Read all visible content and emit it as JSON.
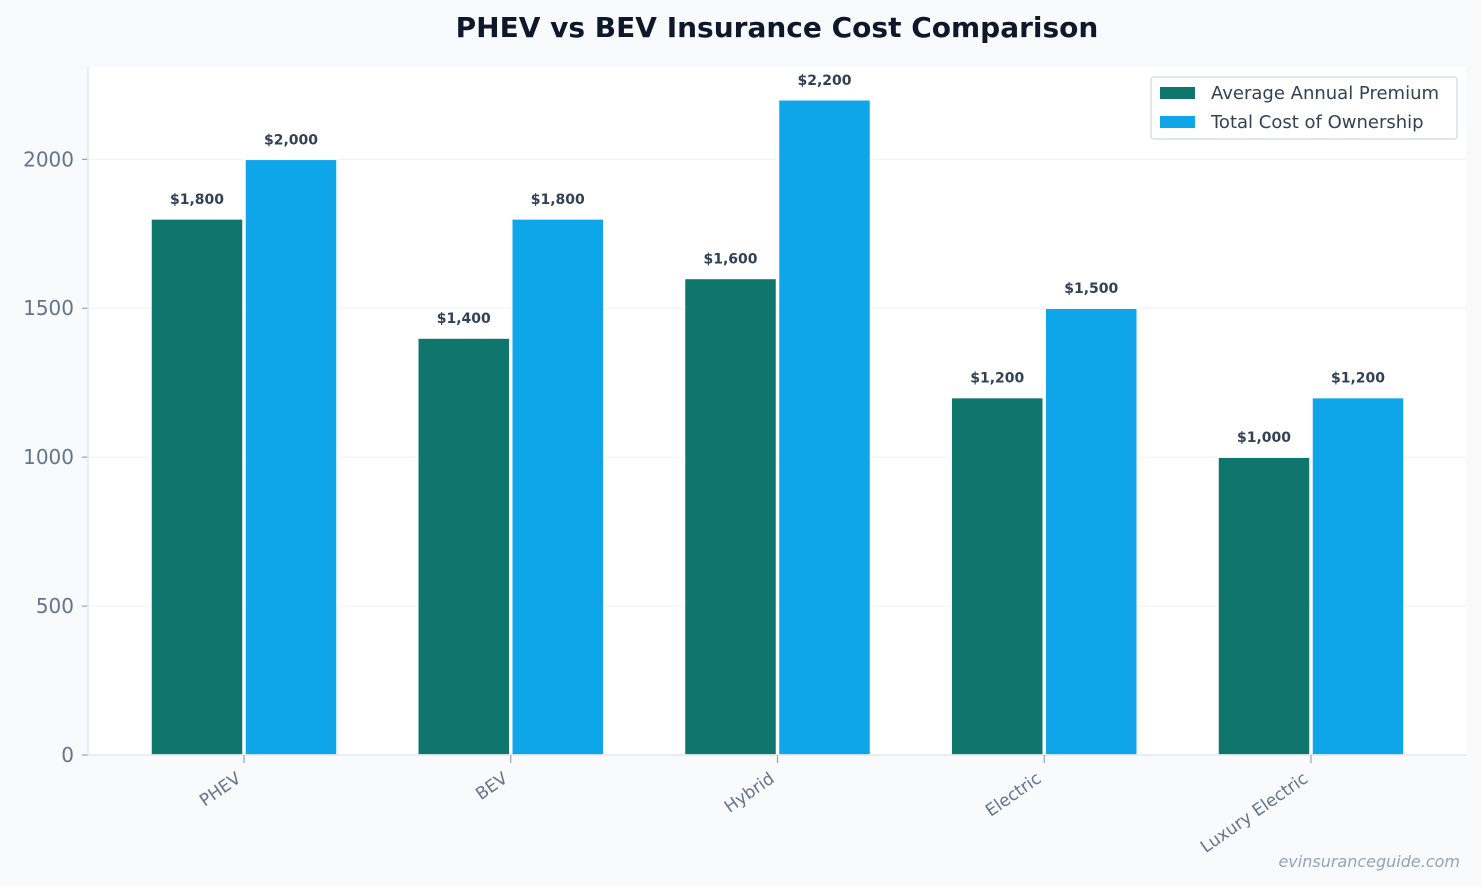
{
  "chart_data": {
    "type": "bar",
    "title": "PHEV vs BEV Insurance Cost Comparison",
    "xlabel": "",
    "ylabel": "",
    "categories": [
      "PHEV",
      "BEV",
      "Hybrid",
      "Electric",
      "Luxury Electric"
    ],
    "series": [
      {
        "name": "Average Annual Premium",
        "color": "#0f766e",
        "values": [
          1800,
          1400,
          1600,
          1200,
          1000
        ],
        "labels": [
          "$1,800",
          "$1,400",
          "$1,600",
          "$1,200",
          "$1,000"
        ]
      },
      {
        "name": "Total Cost of Ownership",
        "color": "#0ea5e9",
        "values": [
          2000,
          1800,
          2200,
          1500,
          1200
        ],
        "labels": [
          "$2,000",
          "$1,800",
          "$2,200",
          "$1,500",
          "$1,200"
        ]
      }
    ],
    "ylim": [
      0,
      2310
    ],
    "yticks": [
      0,
      500,
      1000,
      1500,
      2000
    ],
    "ytick_labels": [
      "0",
      "500",
      "1000",
      "1500",
      "2000"
    ],
    "grid": true,
    "legend_position": "top-right"
  },
  "watermark": "evinsuranceguide.com"
}
